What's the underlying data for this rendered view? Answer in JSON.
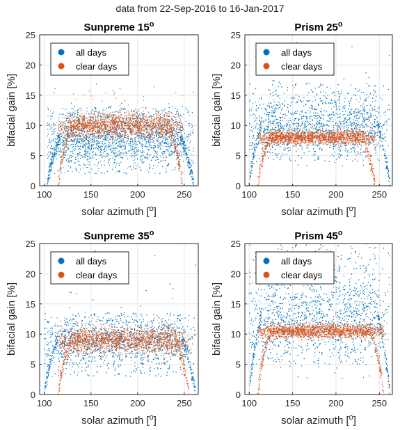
{
  "figure_title": "data from 22-Sep-2016 to 16-Jan-2017",
  "colors": {
    "all_days": "#0072BD",
    "clear_days": "#D95319",
    "grid": "#e6e6e6",
    "axis": "#262626"
  },
  "chart_data": [
    {
      "type": "scatter",
      "title": "Sunpreme 15",
      "title_superscript": "o",
      "xlabel": "solar azimuth [",
      "xlabel_superscript": "o",
      "xlabel_end": "]",
      "ylabel": "bifacial gain [%]",
      "xlim": [
        95,
        265
      ],
      "ylim": [
        0,
        25
      ],
      "xticks": [
        100,
        150,
        200,
        250
      ],
      "yticks": [
        0,
        5,
        10,
        15,
        20,
        25
      ],
      "grid": true,
      "legend_position": "top-left",
      "series": [
        {
          "name": "all days",
          "color": "#0072BD",
          "profile": {
            "x_start": 103,
            "x_end": 260,
            "center_level": 8,
            "band_low": 2,
            "band_high": 13,
            "outlier_max": 17
          }
        },
        {
          "name": "clear days",
          "color": "#D95319",
          "profile": {
            "x_start": 115,
            "x_end": 248,
            "center_level": 10,
            "band_low": 7,
            "band_high": 12.5,
            "outlier_max": 16
          }
        }
      ]
    },
    {
      "type": "scatter",
      "title": "Prism 25",
      "title_superscript": "o",
      "xlabel": "solar azimuth [",
      "xlabel_superscript": "o",
      "xlabel_end": "]",
      "ylabel": "bifacial gain [%]",
      "xlim": [
        95,
        265
      ],
      "ylim": [
        0,
        25
      ],
      "xticks": [
        100,
        150,
        200,
        250
      ],
      "yticks": [
        0,
        5,
        10,
        15,
        20,
        25
      ],
      "grid": true,
      "legend_position": "top-left",
      "series": [
        {
          "name": "all days",
          "color": "#0072BD",
          "profile": {
            "x_start": 100,
            "x_end": 262,
            "center_level": 10,
            "band_low": 4,
            "band_high": 17,
            "outlier_max": 24
          }
        },
        {
          "name": "clear days",
          "color": "#D95319",
          "profile": {
            "x_start": 110,
            "x_end": 245,
            "center_level": 8,
            "band_low": 6.5,
            "band_high": 9.5,
            "outlier_max": 11
          }
        }
      ]
    },
    {
      "type": "scatter",
      "title": "Sunpreme 35",
      "title_superscript": "o",
      "xlabel": "solar azimuth [",
      "xlabel_superscript": "o",
      "xlabel_end": "]",
      "ylabel": "bifacial gain [%]",
      "xlim": [
        95,
        265
      ],
      "ylim": [
        0,
        25
      ],
      "xticks": [
        100,
        150,
        200,
        250
      ],
      "yticks": [
        0,
        5,
        10,
        15,
        20,
        25
      ],
      "grid": true,
      "legend_position": "top-left",
      "series": [
        {
          "name": "all days",
          "color": "#0072BD",
          "profile": {
            "x_start": 100,
            "x_end": 262,
            "center_level": 9,
            "band_low": 3,
            "band_high": 13.5,
            "outlier_max": 24
          }
        },
        {
          "name": "clear days",
          "color": "#D95319",
          "profile": {
            "x_start": 115,
            "x_end": 255,
            "center_level": 9,
            "band_low": 6,
            "band_high": 11.5,
            "outlier_max": 13
          }
        }
      ]
    },
    {
      "type": "scatter",
      "title": "Prism 45",
      "title_superscript": "o",
      "xlabel": "solar azimuth [",
      "xlabel_superscript": "o",
      "xlabel_end": "]",
      "ylabel": "bifacial gain [%]",
      "xlim": [
        95,
        265
      ],
      "ylim": [
        0,
        25
      ],
      "xticks": [
        100,
        150,
        200,
        250
      ],
      "yticks": [
        0,
        5,
        10,
        15,
        20,
        25
      ],
      "grid": true,
      "legend_position": "top-left",
      "series": [
        {
          "name": "all days",
          "color": "#0072BD",
          "profile": {
            "x_start": 100,
            "x_end": 262,
            "center_level": 13,
            "band_low": 5,
            "band_high": 25,
            "outlier_max": 25
          }
        },
        {
          "name": "clear days",
          "color": "#D95319",
          "profile": {
            "x_start": 110,
            "x_end": 255,
            "center_level": 10.5,
            "band_low": 8.5,
            "band_high": 11.5,
            "outlier_max": 13
          }
        }
      ]
    }
  ]
}
